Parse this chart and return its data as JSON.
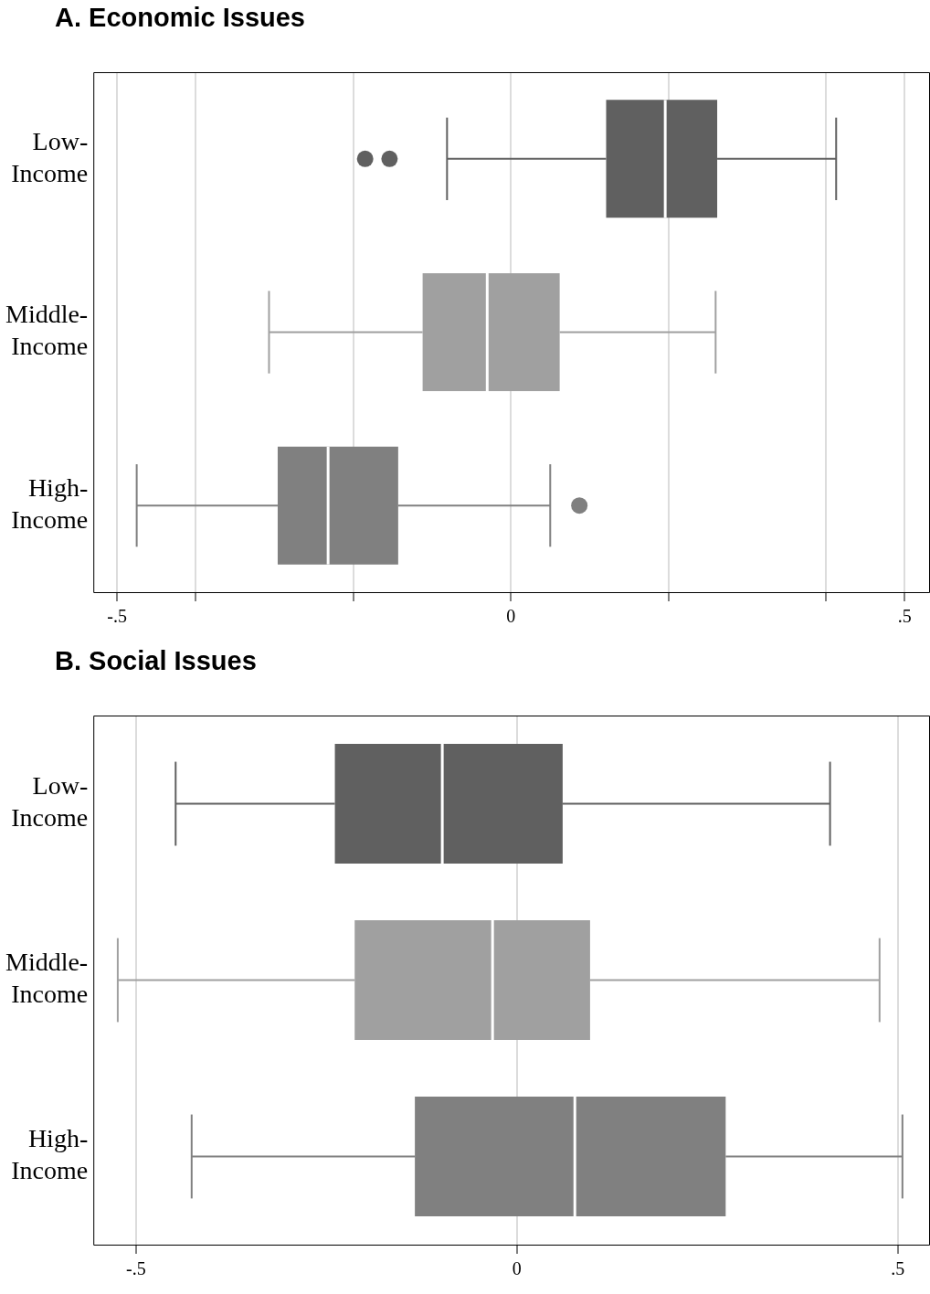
{
  "chart_data": [
    {
      "type": "box",
      "title": "A.  Economic Issues",
      "orientation": "horizontal",
      "categories": [
        "Low-Income",
        "Middle-Income",
        "High-Income"
      ],
      "colors": [
        "#606060",
        "#a0a0a0",
        "#808080"
      ],
      "boxes": [
        {
          "low": -0.081,
          "q1": 0.121,
          "median": 0.196,
          "q3": 0.262,
          "high": 0.413,
          "outliers": [
            -0.185,
            -0.154
          ]
        },
        {
          "low": -0.307,
          "q1": -0.112,
          "median": -0.03,
          "q3": 0.062,
          "high": 0.26
        },
        {
          "low": -0.475,
          "q1": -0.296,
          "median": -0.232,
          "q3": -0.143,
          "high": 0.05,
          "outliers": [
            0.087
          ]
        }
      ],
      "xlim": [
        -0.53,
        0.531
      ],
      "xticks": [
        {
          "value": -0.5,
          "label": "-.5"
        },
        {
          "value": -0.4,
          "label": null
        },
        {
          "value": -0.2,
          "label": null
        },
        0,
        {
          "value": 0.2,
          "label": null
        },
        {
          "value": 0.4,
          "label": null
        },
        {
          "value": 0.5,
          "label": ".5"
        }
      ],
      "grid": "x",
      "marker": "circle"
    },
    {
      "type": "box",
      "title": "B.  Social Issues",
      "orientation": "horizontal",
      "categories": [
        "Low-Income",
        "Middle-Income",
        "High-Income"
      ],
      "colors": [
        "#606060",
        "#a0a0a0",
        "#808080"
      ],
      "boxes": [
        {
          "low": -0.448,
          "q1": -0.239,
          "median": -0.098,
          "q3": 0.06,
          "high": 0.411
        },
        {
          "low": -0.524,
          "q1": -0.213,
          "median": -0.032,
          "q3": 0.096,
          "high": 0.476
        },
        {
          "low": -0.427,
          "q1": -0.134,
          "median": 0.076,
          "q3": 0.274,
          "high": 0.506
        }
      ],
      "xlim": [
        -0.556,
        0.541
      ],
      "xticks": [
        {
          "value": -0.5,
          "label": "-.5"
        },
        0,
        {
          "value": 0.5,
          "label": ".5"
        }
      ],
      "grid": "x"
    }
  ]
}
